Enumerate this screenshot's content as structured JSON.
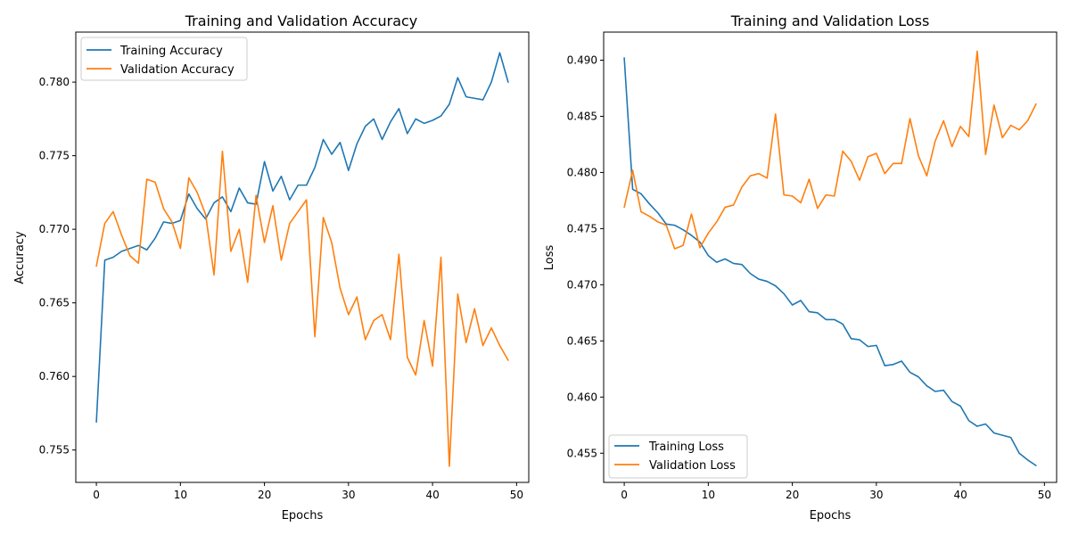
{
  "colors": {
    "training": "#1f77b4",
    "validation": "#ff7f0e"
  },
  "chart_data": [
    {
      "type": "line",
      "title": "Training and Validation Accuracy",
      "xlabel": "Epochs",
      "ylabel": "Accuracy",
      "xlim": [
        -2.45,
        51.45
      ],
      "ylim": [
        0.7528,
        0.7834
      ],
      "xticks": [
        0,
        10,
        20,
        30,
        40,
        50
      ],
      "yticks": [
        0.755,
        0.76,
        0.765,
        0.77,
        0.775,
        0.78
      ],
      "ytick_labels": [
        "0.755",
        "0.760",
        "0.765",
        "0.770",
        "0.775",
        "0.780"
      ],
      "legend_position": "upper-left",
      "x": [
        0,
        1,
        2,
        3,
        4,
        5,
        6,
        7,
        8,
        9,
        10,
        11,
        12,
        13,
        14,
        15,
        16,
        17,
        18,
        19,
        20,
        21,
        22,
        23,
        24,
        25,
        26,
        27,
        28,
        29,
        30,
        31,
        32,
        33,
        34,
        35,
        36,
        37,
        38,
        39,
        40,
        41,
        42,
        43,
        44,
        45,
        46,
        47,
        48,
        49
      ],
      "series": [
        {
          "name": "Training Accuracy",
          "color": "#1f77b4",
          "values": [
            0.7569,
            0.7679,
            0.7681,
            0.7685,
            0.7687,
            0.7689,
            0.7686,
            0.7694,
            0.7705,
            0.7704,
            0.7706,
            0.7724,
            0.7714,
            0.7707,
            0.7718,
            0.7722,
            0.7712,
            0.7728,
            0.7718,
            0.7717,
            0.7746,
            0.7726,
            0.7736,
            0.772,
            0.773,
            0.773,
            0.7742,
            0.7761,
            0.7751,
            0.7759,
            0.774,
            0.7758,
            0.777,
            0.7775,
            0.7761,
            0.7773,
            0.7782,
            0.7765,
            0.7775,
            0.7772,
            0.7774,
            0.7777,
            0.7785,
            0.7803,
            0.779,
            0.7789,
            0.7788,
            0.78,
            0.782,
            0.78
          ]
        },
        {
          "name": "Validation Accuracy",
          "color": "#ff7f0e",
          "values": [
            0.7675,
            0.7704,
            0.7712,
            0.7696,
            0.7682,
            0.7677,
            0.7734,
            0.7732,
            0.7714,
            0.7705,
            0.7687,
            0.7735,
            0.7725,
            0.771,
            0.7669,
            0.7753,
            0.7685,
            0.77,
            0.7664,
            0.7723,
            0.7691,
            0.7716,
            0.7679,
            0.7704,
            0.7712,
            0.772,
            0.7627,
            0.7708,
            0.7691,
            0.766,
            0.7642,
            0.7654,
            0.7625,
            0.7638,
            0.7642,
            0.7625,
            0.7683,
            0.7613,
            0.7601,
            0.7638,
            0.7607,
            0.7681,
            0.7539,
            0.7656,
            0.7623,
            0.7646,
            0.7621,
            0.7633,
            0.7621,
            0.7611
          ]
        }
      ]
    },
    {
      "type": "line",
      "title": "Training and Validation Loss",
      "xlabel": "Epochs",
      "ylabel": "Loss",
      "xlim": [
        -2.45,
        51.45
      ],
      "ylim": [
        0.4524,
        0.4925
      ],
      "xticks": [
        0,
        10,
        20,
        30,
        40,
        50
      ],
      "yticks": [
        0.455,
        0.46,
        0.465,
        0.47,
        0.475,
        0.48,
        0.485,
        0.49
      ],
      "ytick_labels": [
        "0.455",
        "0.460",
        "0.465",
        "0.470",
        "0.475",
        "0.480",
        "0.485",
        "0.490"
      ],
      "legend_position": "lower-left",
      "x": [
        0,
        1,
        2,
        3,
        4,
        5,
        6,
        7,
        8,
        9,
        10,
        11,
        12,
        13,
        14,
        15,
        16,
        17,
        18,
        19,
        20,
        21,
        22,
        23,
        24,
        25,
        26,
        27,
        28,
        29,
        30,
        31,
        32,
        33,
        34,
        35,
        36,
        37,
        38,
        39,
        40,
        41,
        42,
        43,
        44,
        45,
        46,
        47,
        48,
        49
      ],
      "series": [
        {
          "name": "Training Loss",
          "color": "#1f77b4",
          "values": [
            0.4902,
            0.4785,
            0.4781,
            0.4772,
            0.4764,
            0.4754,
            0.4753,
            0.4749,
            0.4744,
            0.4738,
            0.4726,
            0.472,
            0.4723,
            0.4719,
            0.4718,
            0.471,
            0.4705,
            0.4703,
            0.4699,
            0.4692,
            0.4682,
            0.4686,
            0.4676,
            0.4675,
            0.4669,
            0.4669,
            0.4665,
            0.4652,
            0.4651,
            0.4645,
            0.4646,
            0.4628,
            0.4629,
            0.4632,
            0.4622,
            0.4618,
            0.461,
            0.4605,
            0.4606,
            0.4596,
            0.4592,
            0.4579,
            0.4574,
            0.4576,
            0.4568,
            0.4566,
            0.4564,
            0.455,
            0.4544,
            0.4539
          ]
        },
        {
          "name": "Validation Loss",
          "color": "#ff7f0e",
          "values": [
            0.4769,
            0.4802,
            0.4765,
            0.4761,
            0.4756,
            0.4753,
            0.4732,
            0.4735,
            0.4763,
            0.4733,
            0.4746,
            0.4756,
            0.4769,
            0.4771,
            0.4787,
            0.4797,
            0.4799,
            0.4795,
            0.4852,
            0.478,
            0.4779,
            0.4773,
            0.4794,
            0.4768,
            0.478,
            0.4779,
            0.4819,
            0.481,
            0.4793,
            0.4814,
            0.4817,
            0.4799,
            0.4808,
            0.4808,
            0.4848,
            0.4815,
            0.4797,
            0.4828,
            0.4846,
            0.4823,
            0.4841,
            0.4832,
            0.4908,
            0.4816,
            0.486,
            0.4831,
            0.4842,
            0.4838,
            0.4846,
            0.4861
          ]
        }
      ]
    }
  ]
}
